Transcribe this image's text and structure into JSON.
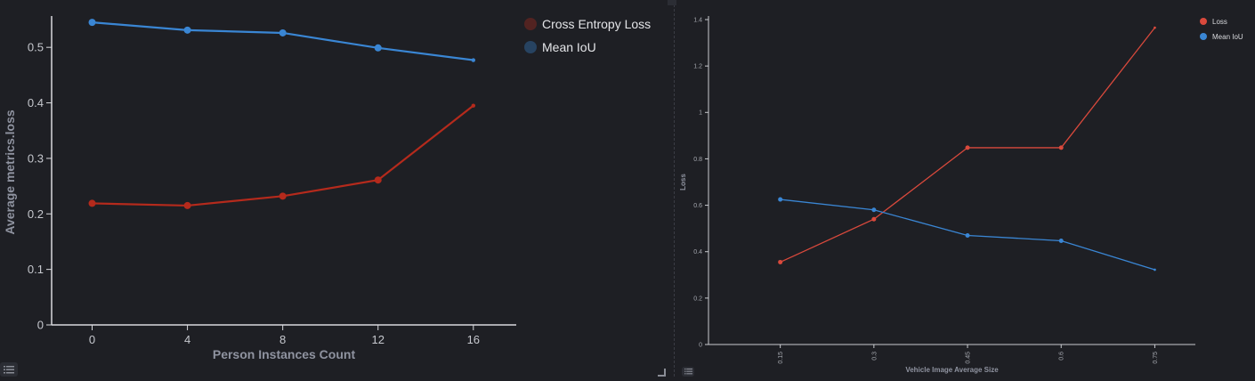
{
  "chart_data": [
    {
      "type": "line",
      "xlabel": "Person Instances Count",
      "ylabel": "Average metrics.loss",
      "x": [
        0,
        4,
        8,
        12,
        16
      ],
      "xticks": [
        "0",
        "4",
        "8",
        "12",
        "16"
      ],
      "yticks": [
        "0",
        "0.1",
        "0.2",
        "0.3",
        "0.4",
        "0.5"
      ],
      "xlim": [
        -1.7,
        17.8
      ],
      "ylim": [
        0,
        0.55
      ],
      "grid": false,
      "legend": "top-right",
      "series": [
        {
          "name": "Cross Entropy Loss",
          "color": "#b52a1c",
          "values": [
            0.219,
            0.215,
            0.232,
            0.261,
            0.395
          ]
        },
        {
          "name": "Mean IoU",
          "color": "#3a86d4",
          "values": [
            0.545,
            0.531,
            0.526,
            0.499,
            0.477
          ]
        }
      ]
    },
    {
      "type": "line",
      "xlabel": "Vehicle Image Average Size",
      "ylabel": "Loss",
      "x": [
        0.15,
        0.3,
        0.45,
        0.6,
        0.75
      ],
      "xticks": [
        "0.15",
        "0.3",
        "0.45",
        "0.6",
        "0.75"
      ],
      "yticks": [
        "0",
        "0.2",
        "0.4",
        "0.6",
        "0.8",
        "1",
        "1.2",
        "1.4"
      ],
      "xlim": [
        0.035,
        0.815
      ],
      "ylim": [
        0,
        1.4
      ],
      "grid": false,
      "legend": "top-right",
      "series": [
        {
          "name": "Loss",
          "color": "#d9493c",
          "values": [
            0.355,
            0.54,
            0.848,
            0.848,
            1.365
          ]
        },
        {
          "name": "Mean IoU",
          "color": "#3a86d4",
          "values": [
            0.625,
            0.58,
            0.47,
            0.447,
            0.322
          ]
        }
      ]
    }
  ]
}
